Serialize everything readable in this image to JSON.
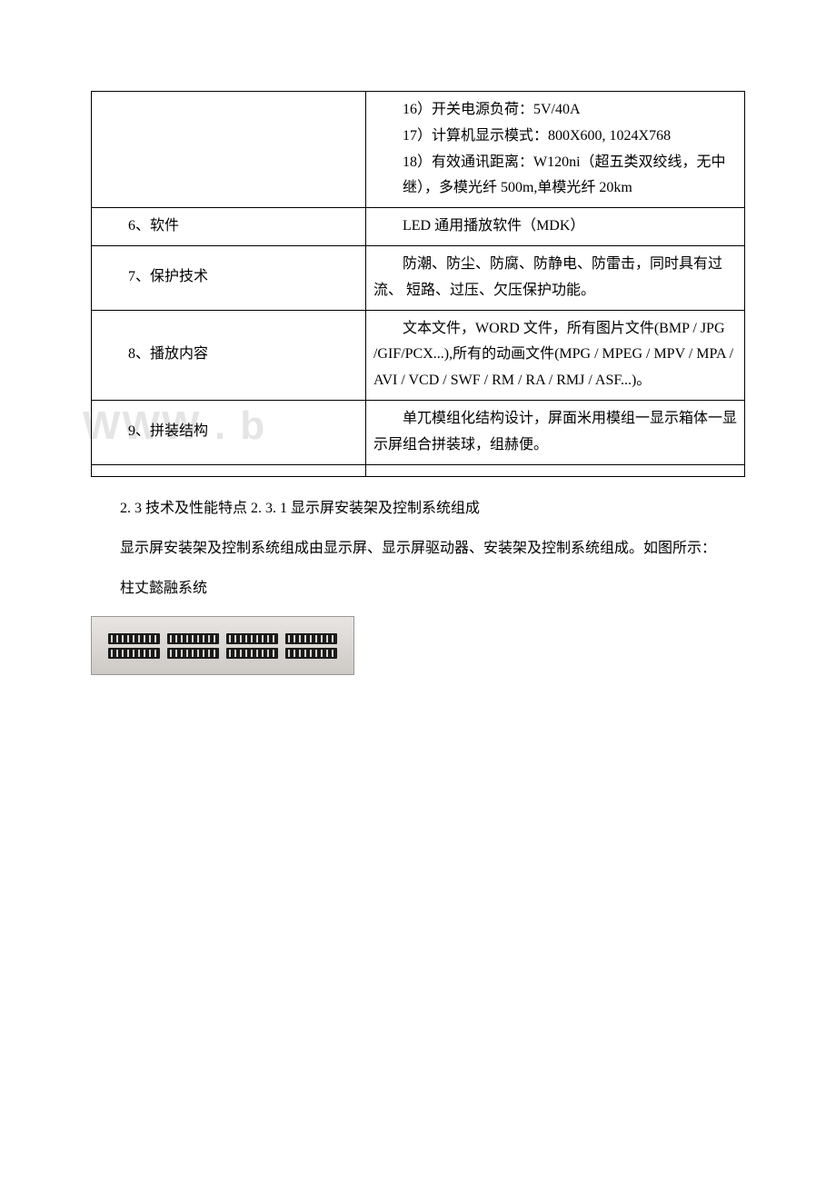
{
  "table": {
    "row0": {
      "left": "",
      "right_items": [
        "16）开关电源负荷：5V/40A",
        "17）计算机显示模式：800X600, 1024X768",
        "18）有效通讯距离：W120ni（超五类双绞线，无中",
        "继），多模光纤 500m,单模光纤 20km"
      ]
    },
    "row1": {
      "left": "6、软件",
      "right": "LED 通用播放软件（MDK）"
    },
    "row2": {
      "left": "7、保护技术",
      "right": "防潮、防尘、防腐、防静电、防雷击，同时具有过流、 短路、过压、欠压保护功能。"
    },
    "row3": {
      "left": "8、播放内容",
      "right": "文本文件，WORD 文件，所有图片文件(BMP / JPG /GIF/PCX...),所有的动画文件(MPG / MPEG / MPV / MPA / AVI / VCD / SWF / RM / RA / RMJ / ASF...)。"
    },
    "row4": {
      "left": "9、拼装结构",
      "right": "单兀模组化结构设计，屏面米用模组一显示箱体一显 示屏组合拼装球，组赫便。"
    },
    "row5": {
      "left": "",
      "right": ""
    }
  },
  "paragraphs": {
    "p1": "2. 3 技术及性能特点 2. 3. 1 显示屏安装架及控制系统组成",
    "p2": "显示屏安装架及控制系统组成由显示屏、显示屏驱动器、安装架及控制系统组成。如图所示：",
    "p3": "柱丈懿融系统"
  },
  "watermark": "WWW . b"
}
